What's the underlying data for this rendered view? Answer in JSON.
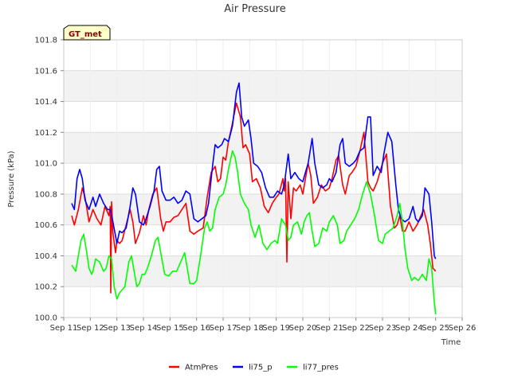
{
  "chart_data": {
    "type": "line",
    "title": "Air Pressure",
    "badge": "GT_met",
    "xlabel": "Time",
    "ylabel": "Pressure (kPa)",
    "ylim": [
      100.0,
      101.8
    ],
    "yticks": [
      100.0,
      100.2,
      100.4,
      100.6,
      100.8,
      101.0,
      101.2,
      101.4,
      101.6,
      101.8
    ],
    "yticks_labels": [
      "100.0",
      "100.2",
      "100.4",
      "100.6",
      "100.8",
      "101.0",
      "101.2",
      "101.4",
      "101.6",
      "101.8"
    ],
    "xlim": [
      11,
      26
    ],
    "xticks": [
      11,
      12,
      13,
      14,
      15,
      16,
      17,
      18,
      19,
      20,
      21,
      22,
      23,
      24,
      25,
      26
    ],
    "xtick_labels": [
      "Sep 11",
      "Sep 12",
      "Sep 13",
      "Sep 14",
      "Sep 15",
      "Sep 16",
      "Sep 17",
      "Sep 18",
      "Sep 19",
      "Sep 20",
      "Sep 21",
      "Sep 22",
      "Sep 23",
      "Sep 24",
      "Sep 25",
      "Sep 26"
    ],
    "band_shading": "alternating",
    "legend_position": "bottom-center",
    "series": [
      {
        "name": "AtmPres",
        "color": "#ff0000",
        "x": [
          11.3,
          11.4,
          11.55,
          11.7,
          11.8,
          11.95,
          12.1,
          12.25,
          12.4,
          12.55,
          12.7,
          12.75,
          12.77,
          12.8,
          12.85,
          12.95,
          13.0,
          13.1,
          13.2,
          13.35,
          13.5,
          13.6,
          13.7,
          13.85,
          14.0,
          14.1,
          14.2,
          14.35,
          14.5,
          14.65,
          14.75,
          14.85,
          15.0,
          15.15,
          15.3,
          15.45,
          15.6,
          15.75,
          15.9,
          16.05,
          16.25,
          16.4,
          16.55,
          16.7,
          16.8,
          16.9,
          17.0,
          17.1,
          17.2,
          17.35,
          17.5,
          17.65,
          17.75,
          17.85,
          18.0,
          18.1,
          18.25,
          18.4,
          18.55,
          18.7,
          18.85,
          19.0,
          19.1,
          19.25,
          19.3,
          19.35,
          19.4,
          19.45,
          19.55,
          19.65,
          19.75,
          19.9,
          20.0,
          20.1,
          20.2,
          20.3,
          20.4,
          20.55,
          20.7,
          20.85,
          21.0,
          21.1,
          21.25,
          21.35,
          21.5,
          21.6,
          21.75,
          21.85,
          22.0,
          22.15,
          22.3,
          22.45,
          22.55,
          22.65,
          22.8,
          23.0,
          23.15,
          23.3,
          23.45,
          23.55,
          23.65,
          23.75,
          23.85,
          24.0,
          24.15,
          24.3,
          24.45,
          24.55,
          24.7,
          24.8,
          24.9,
          25.0
        ],
        "values": [
          100.66,
          100.6,
          100.7,
          100.84,
          100.78,
          100.62,
          100.7,
          100.64,
          100.6,
          100.72,
          100.66,
          100.72,
          100.16,
          100.75,
          100.55,
          100.42,
          100.5,
          100.48,
          100.5,
          100.6,
          100.7,
          100.62,
          100.48,
          100.55,
          100.66,
          100.6,
          100.7,
          100.8,
          100.84,
          100.64,
          100.56,
          100.62,
          100.62,
          100.65,
          100.66,
          100.7,
          100.74,
          100.56,
          100.54,
          100.56,
          100.58,
          100.78,
          100.94,
          100.98,
          100.88,
          100.9,
          101.04,
          101.02,
          101.14,
          101.26,
          101.39,
          101.3,
          101.1,
          101.12,
          101.06,
          100.88,
          100.9,
          100.84,
          100.72,
          100.68,
          100.74,
          100.78,
          100.8,
          100.9,
          100.82,
          100.9,
          100.36,
          100.88,
          100.64,
          100.84,
          100.82,
          100.86,
          100.8,
          100.9,
          101.0,
          100.92,
          100.74,
          100.78,
          100.86,
          100.82,
          100.84,
          100.9,
          101.02,
          101.05,
          100.86,
          100.8,
          100.92,
          100.94,
          100.98,
          101.08,
          101.2,
          100.88,
          100.84,
          100.82,
          100.88,
          101.0,
          101.06,
          100.72,
          100.58,
          100.6,
          100.66,
          100.56,
          100.56,
          100.62,
          100.56,
          100.6,
          100.66,
          100.7,
          100.6,
          100.48,
          100.32,
          100.3
        ]
      },
      {
        "name": "li75_p",
        "color": "#0000ff",
        "x": [
          11.3,
          11.4,
          11.5,
          11.6,
          11.7,
          11.8,
          11.95,
          12.1,
          12.2,
          12.35,
          12.5,
          12.65,
          12.75,
          12.85,
          13.0,
          13.1,
          13.2,
          13.35,
          13.5,
          13.6,
          13.7,
          13.85,
          14.0,
          14.1,
          14.25,
          14.4,
          14.5,
          14.6,
          14.7,
          14.85,
          15.0,
          15.15,
          15.3,
          15.45,
          15.6,
          15.75,
          15.9,
          16.05,
          16.2,
          16.35,
          16.45,
          16.6,
          16.7,
          16.8,
          16.95,
          17.05,
          17.2,
          17.35,
          17.5,
          17.6,
          17.7,
          17.8,
          17.95,
          18.05,
          18.15,
          18.3,
          18.45,
          18.6,
          18.75,
          18.9,
          19.05,
          19.2,
          19.3,
          19.45,
          19.55,
          19.7,
          19.85,
          20.0,
          20.1,
          20.2,
          20.35,
          20.45,
          20.6,
          20.75,
          20.9,
          21.0,
          21.1,
          21.25,
          21.4,
          21.5,
          21.6,
          21.75,
          21.9,
          22.0,
          22.15,
          22.3,
          22.45,
          22.55,
          22.65,
          22.8,
          22.95,
          23.05,
          23.2,
          23.35,
          23.5,
          23.6,
          23.7,
          23.85,
          24.0,
          24.15,
          24.25,
          24.35,
          24.5,
          24.6,
          24.75,
          24.85,
          24.95,
          25.0
        ],
        "values": [
          100.74,
          100.7,
          100.9,
          100.96,
          100.9,
          100.76,
          100.7,
          100.78,
          100.72,
          100.8,
          100.74,
          100.7,
          100.7,
          100.62,
          100.48,
          100.56,
          100.55,
          100.58,
          100.72,
          100.84,
          100.8,
          100.62,
          100.6,
          100.64,
          100.72,
          100.82,
          100.96,
          100.98,
          100.82,
          100.76,
          100.76,
          100.78,
          100.74,
          100.76,
          100.82,
          100.8,
          100.64,
          100.62,
          100.64,
          100.66,
          100.74,
          100.98,
          101.12,
          101.1,
          101.12,
          101.16,
          101.14,
          101.24,
          101.46,
          101.52,
          101.3,
          101.24,
          101.28,
          101.16,
          101.0,
          100.98,
          100.94,
          100.84,
          100.78,
          100.78,
          100.82,
          100.8,
          100.86,
          101.06,
          100.9,
          100.94,
          100.9,
          100.88,
          100.94,
          101.0,
          101.16,
          101.0,
          100.86,
          100.84,
          100.86,
          100.9,
          100.88,
          100.94,
          101.12,
          101.16,
          101.0,
          100.98,
          101.0,
          101.02,
          101.08,
          101.1,
          101.3,
          101.3,
          100.92,
          100.98,
          100.94,
          101.06,
          101.2,
          101.14,
          100.86,
          100.7,
          100.64,
          100.62,
          100.64,
          100.72,
          100.64,
          100.62,
          100.66,
          100.84,
          100.8,
          100.62,
          100.4,
          100.38
        ]
      },
      {
        "name": "li77_pres",
        "color": "#00ff00",
        "x": [
          11.3,
          11.45,
          11.55,
          11.65,
          11.75,
          11.85,
          11.95,
          12.05,
          12.1,
          12.2,
          12.35,
          12.5,
          12.6,
          12.7,
          12.8,
          12.9,
          13.0,
          13.1,
          13.2,
          13.3,
          13.45,
          13.55,
          13.65,
          13.75,
          13.85,
          13.95,
          14.05,
          14.15,
          14.3,
          14.45,
          14.55,
          14.65,
          14.8,
          14.95,
          15.1,
          15.25,
          15.4,
          15.55,
          15.65,
          15.75,
          15.9,
          16.0,
          16.15,
          16.3,
          16.4,
          16.5,
          16.6,
          16.7,
          16.85,
          17.0,
          17.1,
          17.2,
          17.35,
          17.45,
          17.55,
          17.65,
          17.8,
          17.95,
          18.05,
          18.2,
          18.35,
          18.5,
          18.65,
          18.8,
          18.95,
          19.05,
          19.2,
          19.35,
          19.45,
          19.55,
          19.65,
          19.8,
          19.95,
          20.05,
          20.15,
          20.25,
          20.35,
          20.45,
          20.6,
          20.75,
          20.9,
          21.0,
          21.15,
          21.3,
          21.4,
          21.55,
          21.65,
          21.8,
          21.95,
          22.1,
          22.25,
          22.4,
          22.55,
          22.7,
          22.85,
          23.0,
          23.1,
          23.25,
          23.4,
          23.55,
          23.65,
          23.75,
          23.85,
          23.95,
          24.1,
          24.2,
          24.35,
          24.5,
          24.65,
          24.75,
          24.85,
          24.95,
          25.0
        ],
        "values": [
          100.34,
          100.3,
          100.4,
          100.5,
          100.54,
          100.44,
          100.32,
          100.28,
          100.3,
          100.38,
          100.36,
          100.3,
          100.32,
          100.4,
          100.38,
          100.2,
          100.12,
          100.16,
          100.18,
          100.2,
          100.36,
          100.4,
          100.3,
          100.2,
          100.22,
          100.28,
          100.28,
          100.32,
          100.4,
          100.5,
          100.52,
          100.42,
          100.28,
          100.27,
          100.3,
          100.3,
          100.36,
          100.42,
          100.32,
          100.22,
          100.22,
          100.24,
          100.4,
          100.58,
          100.62,
          100.56,
          100.58,
          100.7,
          100.78,
          100.8,
          100.86,
          100.96,
          101.08,
          101.04,
          100.94,
          100.8,
          100.74,
          100.7,
          100.6,
          100.52,
          100.6,
          100.48,
          100.44,
          100.48,
          100.5,
          100.48,
          100.64,
          100.6,
          100.5,
          100.52,
          100.6,
          100.62,
          100.54,
          100.62,
          100.66,
          100.68,
          100.56,
          100.46,
          100.48,
          100.58,
          100.56,
          100.62,
          100.66,
          100.6,
          100.48,
          100.5,
          100.56,
          100.6,
          100.64,
          100.7,
          100.8,
          100.88,
          100.8,
          100.66,
          100.5,
          100.48,
          100.54,
          100.56,
          100.58,
          100.66,
          100.74,
          100.62,
          100.44,
          100.32,
          100.24,
          100.26,
          100.24,
          100.28,
          100.24,
          100.38,
          100.32,
          100.1,
          100.02
        ]
      }
    ]
  }
}
